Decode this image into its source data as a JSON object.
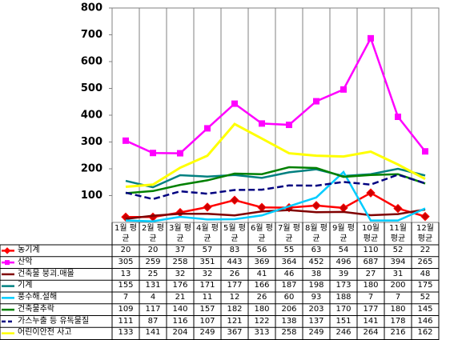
{
  "chart_data": {
    "type": "line",
    "categories": [
      "1월 평균",
      "2월 평균",
      "3월 평균",
      "4월 평균",
      "5월 평균",
      "6월 평균",
      "7월 평균",
      "8월 평균",
      "9월 평균",
      "10월 평균",
      "11월 평균",
      "12월 평균"
    ],
    "ylim": [
      0,
      800
    ],
    "yticks": [
      100,
      200,
      300,
      400,
      500,
      600,
      700,
      800
    ],
    "series": [
      {
        "name": "농기계",
        "color": "#ff0000",
        "marker": "diamond",
        "values": [
          20,
          20,
          37,
          57,
          83,
          56,
          55,
          63,
          54,
          110,
          52,
          22
        ]
      },
      {
        "name": "산악",
        "color": "#ff00ff",
        "marker": "square",
        "values": [
          305,
          259,
          258,
          351,
          443,
          369,
          364,
          452,
          496,
          687,
          394,
          265
        ]
      },
      {
        "name": "건축물 붕괴.매몰",
        "color": "#800000",
        "values": [
          13,
          25,
          32,
          32,
          26,
          41,
          46,
          38,
          39,
          27,
          31,
          48
        ]
      },
      {
        "name": "기계",
        "color": "#008080",
        "values": [
          155,
          131,
          176,
          171,
          177,
          166,
          187,
          198,
          173,
          180,
          200,
          175
        ]
      },
      {
        "name": "풍수해.설해",
        "color": "#00ccff",
        "values": [
          7,
          4,
          21,
          11,
          12,
          26,
          60,
          93,
          188,
          7,
          7,
          52
        ]
      },
      {
        "name": "건축물추락",
        "color": "#008000",
        "values": [
          109,
          117,
          140,
          157,
          182,
          180,
          206,
          203,
          170,
          177,
          180,
          145
        ]
      },
      {
        "name": "가스누출 등 유독물질",
        "color": "#000080",
        "dash": true,
        "values": [
          111,
          87,
          116,
          107,
          121,
          122,
          138,
          137,
          151,
          141,
          178,
          146
        ]
      },
      {
        "name": "어린이안전 사고",
        "color": "#ffff00",
        "values": [
          133,
          141,
          204,
          249,
          367,
          313,
          258,
          249,
          246,
          264,
          216,
          162
        ]
      }
    ]
  }
}
